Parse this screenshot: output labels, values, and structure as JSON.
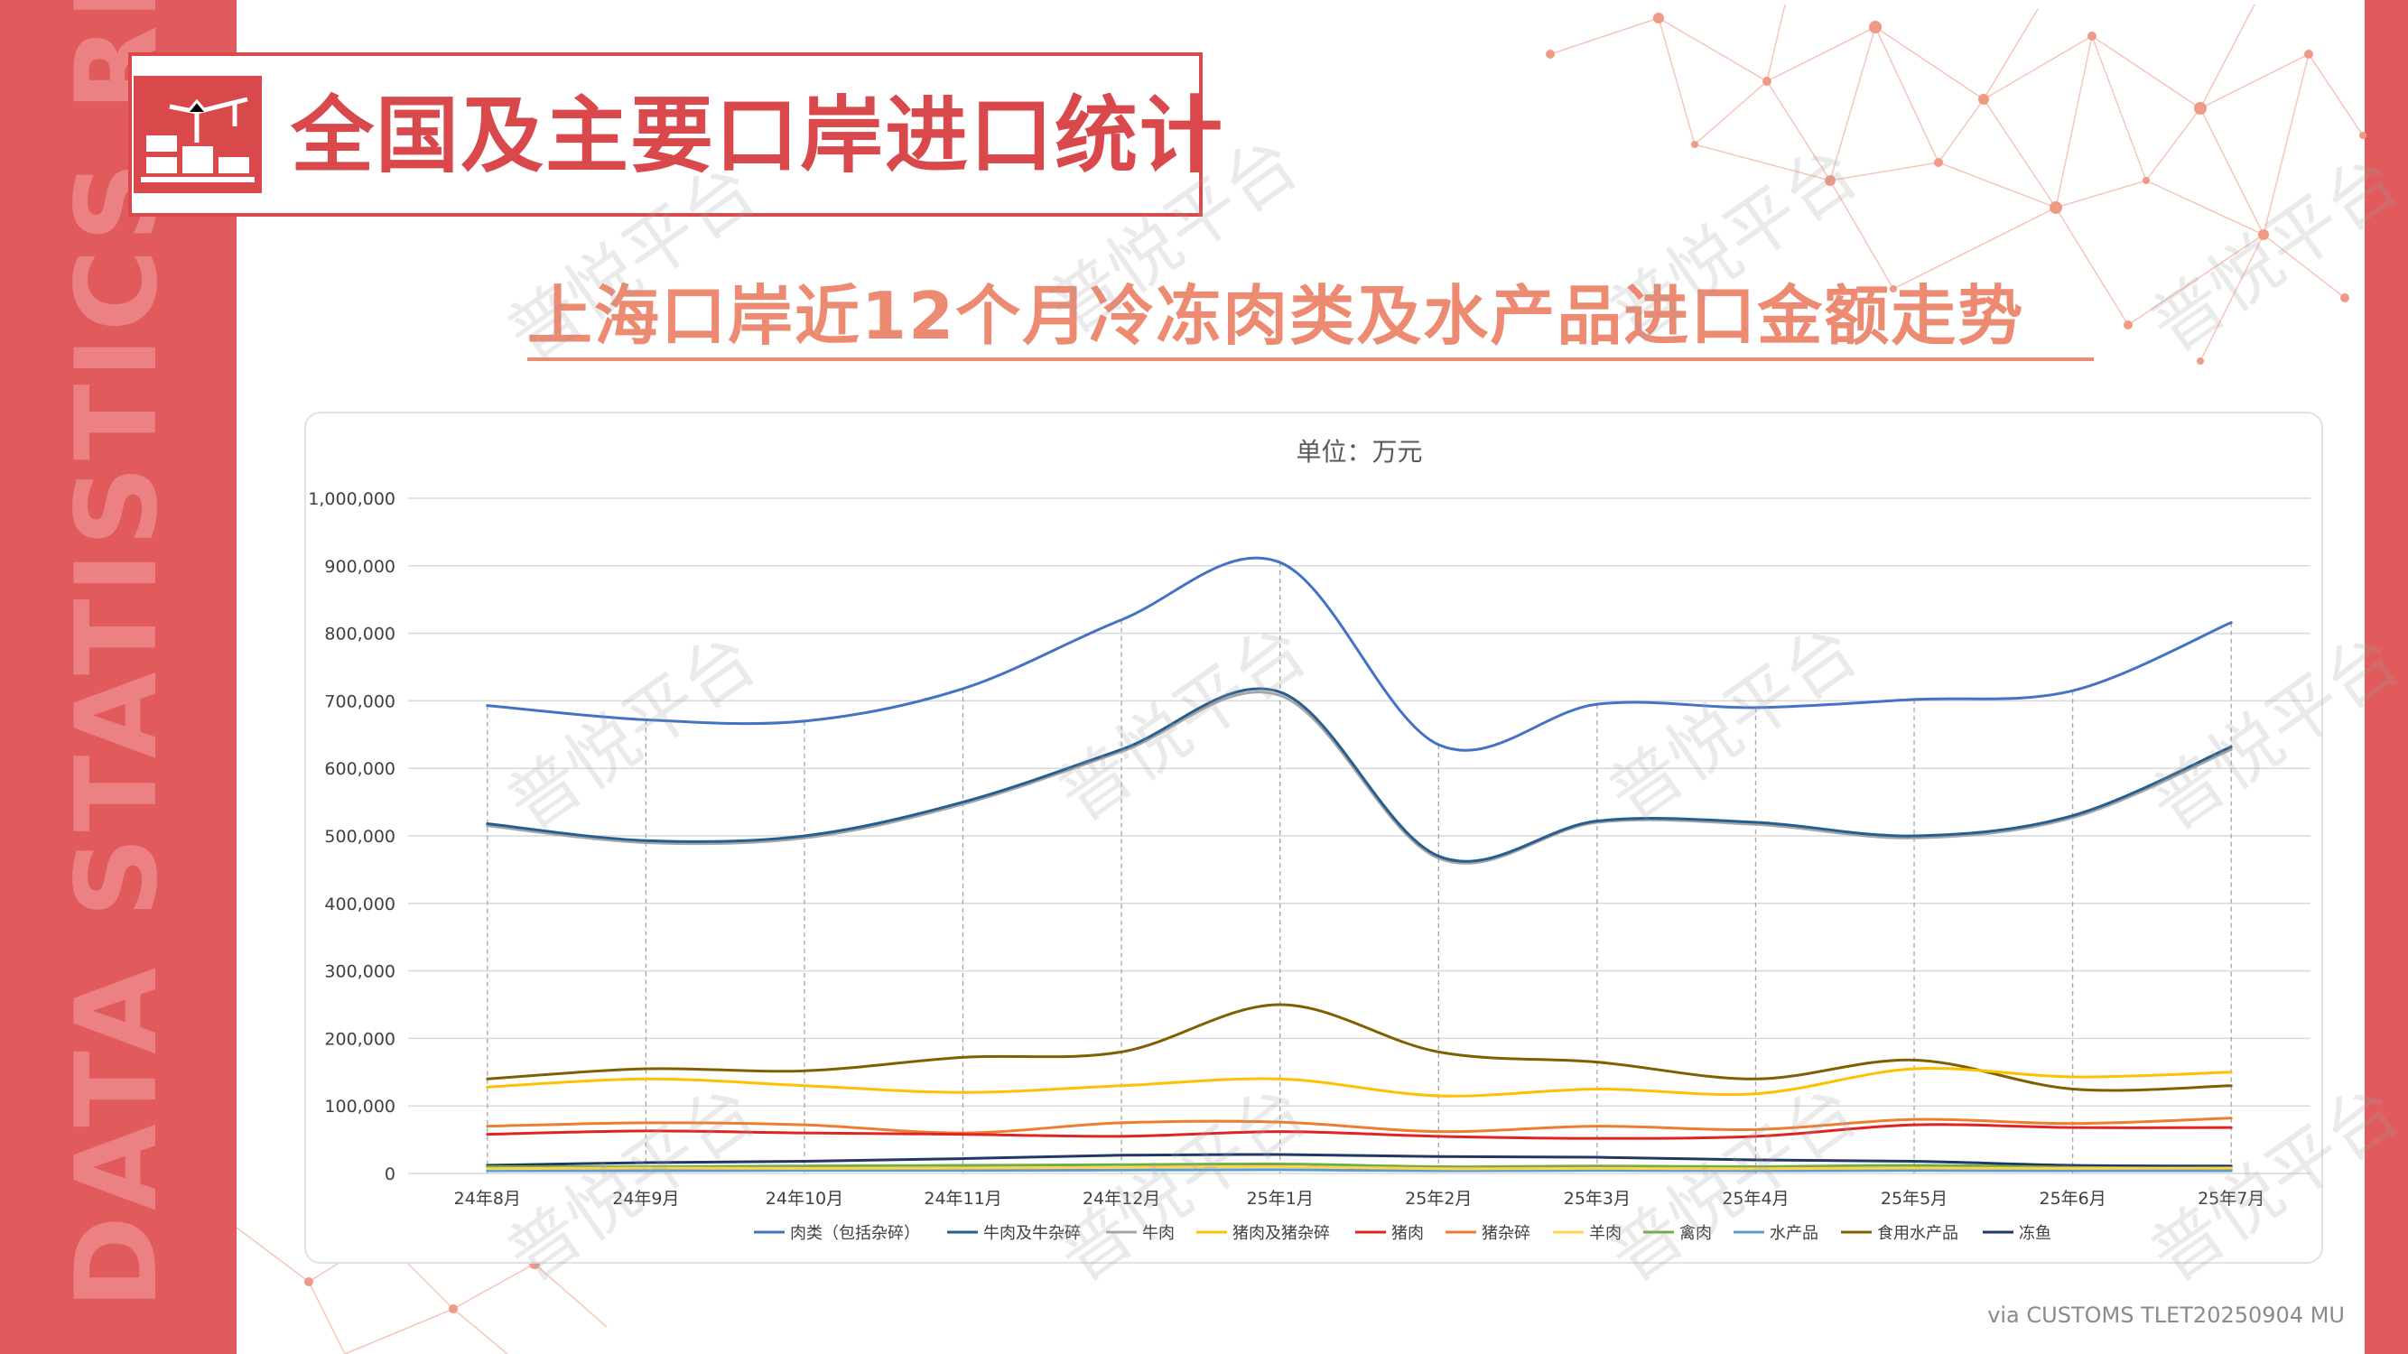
{
  "page": {
    "side_banner_text": "DATA STATISTICS REPORT",
    "section_title": "全国及主要口岸进口统计",
    "subtitle": "上海口岸近12个月冷冻肉类及水产品进口金额走势",
    "credit": "via CUSTOMS TLET20250904 MU",
    "watermark_text": "普悦平台"
  },
  "colors": {
    "accent_red": "#e15a5c",
    "title_red": "#d9484b",
    "subtitle_orange": "#ec8a72"
  },
  "chart_data": {
    "type": "line",
    "title": "单位：万元",
    "xlabel": "",
    "ylabel": "",
    "categories": [
      "24年8月",
      "24年9月",
      "24年10月",
      "24年11月",
      "24年12月",
      "25年1月",
      "25年2月",
      "25年3月",
      "25年4月",
      "25年5月",
      "25年6月",
      "25年7月"
    ],
    "ylim": [
      0,
      1000000
    ],
    "yticks": [
      0,
      100000,
      200000,
      300000,
      400000,
      500000,
      600000,
      700000,
      800000,
      900000,
      1000000
    ],
    "ytick_labels": [
      "0",
      "100,000",
      "200,000",
      "300,000",
      "400,000",
      "500,000",
      "600,000",
      "700,000",
      "800,000",
      "900,000",
      "1,000,000"
    ],
    "grid": true,
    "legend_position": "bottom",
    "smooth": true,
    "series": [
      {
        "name": "肉类（包括杂碎）",
        "color": "#4472c4",
        "values": [
          693000,
          672000,
          670000,
          718000,
          820000,
          905000,
          635000,
          695000,
          690000,
          702000,
          715000,
          816000
        ]
      },
      {
        "name": "牛肉及牛杂碎",
        "color": "#255e91",
        "values": [
          518000,
          493000,
          500000,
          550000,
          628000,
          713000,
          470000,
          522000,
          520000,
          500000,
          530000,
          632000
        ]
      },
      {
        "name": "牛肉",
        "color": "#a5a5a5",
        "values": [
          515000,
          490000,
          497000,
          547000,
          625000,
          708000,
          467000,
          520000,
          517000,
          497000,
          527000,
          628000
        ]
      },
      {
        "name": "猪肉及猪杂碎",
        "color": "#ffc000",
        "values": [
          128000,
          140000,
          130000,
          120000,
          130000,
          140000,
          115000,
          125000,
          118000,
          155000,
          143000,
          150000
        ]
      },
      {
        "name": "猪肉",
        "color": "#e02424",
        "values": [
          58000,
          63000,
          60000,
          58000,
          55000,
          62000,
          55000,
          52000,
          55000,
          72000,
          68000,
          68000
        ]
      },
      {
        "name": "猪杂碎",
        "color": "#ed7d31",
        "values": [
          70000,
          75000,
          72000,
          60000,
          75000,
          76000,
          62000,
          70000,
          65000,
          80000,
          74000,
          82000
        ]
      },
      {
        "name": "羊肉",
        "color": "#ffd34d",
        "values": [
          7000,
          8000,
          7500,
          8000,
          9000,
          10000,
          7000,
          7500,
          7000,
          8000,
          7500,
          8000
        ]
      },
      {
        "name": "禽肉",
        "color": "#70ad47",
        "values": [
          10000,
          10000,
          11000,
          12000,
          13000,
          14000,
          10000,
          11000,
          10000,
          12000,
          9000,
          7000
        ]
      },
      {
        "name": "水产品",
        "color": "#5b9bd5",
        "values": [
          4000,
          4000,
          4500,
          4500,
          5000,
          5500,
          4000,
          4500,
          4000,
          4500,
          4000,
          4000
        ]
      },
      {
        "name": "食用水产品",
        "color": "#7f6000",
        "values": [
          140000,
          155000,
          152000,
          172000,
          180000,
          250000,
          180000,
          165000,
          140000,
          168000,
          125000,
          130000
        ]
      },
      {
        "name": "冻鱼",
        "color": "#1f3864",
        "values": [
          12000,
          16000,
          18000,
          22000,
          27000,
          28000,
          25000,
          24000,
          20000,
          18000,
          12000,
          11000
        ]
      }
    ]
  }
}
